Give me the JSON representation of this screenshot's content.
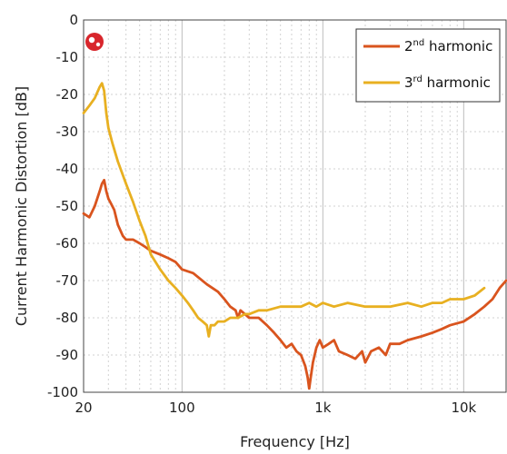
{
  "chart_data": {
    "type": "line",
    "xlabel": "Frequency [Hz]",
    "ylabel": "Current Harmonic Distortion [dB]",
    "x_scale": "log",
    "xlim": [
      20,
      20000
    ],
    "ylim": [
      -100,
      0
    ],
    "grid": true,
    "legend_position": "top-right",
    "x_ticks": [
      {
        "value": 20,
        "label": "20"
      },
      {
        "value": 100,
        "label": "100"
      },
      {
        "value": 1000,
        "label": "1k"
      },
      {
        "value": 10000,
        "label": "10k"
      }
    ],
    "y_ticks": [
      {
        "value": 0,
        "label": "0"
      },
      {
        "value": -10,
        "label": "-10"
      },
      {
        "value": -20,
        "label": "-20"
      },
      {
        "value": -30,
        "label": "-30"
      },
      {
        "value": -40,
        "label": "-40"
      },
      {
        "value": -50,
        "label": "-50"
      },
      {
        "value": -60,
        "label": "-60"
      },
      {
        "value": -70,
        "label": "-70"
      },
      {
        "value": -80,
        "label": "-80"
      },
      {
        "value": -90,
        "label": "-90"
      },
      {
        "value": -100,
        "label": "-100"
      }
    ],
    "series": [
      {
        "name": "2nd harmonic",
        "label_base": "2",
        "label_sup": "nd",
        "label_rest": " harmonic",
        "color": "#d9541e",
        "x": [
          20,
          22,
          24,
          26,
          27,
          28,
          29,
          30,
          31,
          33,
          35,
          38,
          40,
          45,
          50,
          55,
          60,
          70,
          80,
          90,
          100,
          120,
          150,
          180,
          200,
          220,
          240,
          250,
          260,
          300,
          350,
          400,
          450,
          500,
          550,
          600,
          650,
          700,
          750,
          780,
          800,
          820,
          850,
          900,
          950,
          1000,
          1100,
          1200,
          1300,
          1500,
          1700,
          1900,
          2000,
          2200,
          2500,
          2800,
          3000,
          3500,
          4000,
          5000,
          6000,
          7000,
          8000,
          10000,
          12000,
          14000,
          16000,
          18000,
          20000
        ],
        "y": [
          -52,
          -53,
          -50,
          -46,
          -44,
          -43,
          -46,
          -48,
          -49,
          -51,
          -55,
          -58,
          -59,
          -59,
          -60,
          -61,
          -62,
          -63,
          -64,
          -65,
          -67,
          -68,
          -71,
          -73,
          -75,
          -77,
          -78,
          -80,
          -78,
          -80,
          -80,
          -82,
          -84,
          -86,
          -88,
          -87,
          -89,
          -90,
          -93,
          -96,
          -99,
          -96,
          -92,
          -88,
          -86,
          -88,
          -87,
          -86,
          -89,
          -90,
          -91,
          -89,
          -92,
          -89,
          -88,
          -90,
          -87,
          -87,
          -86,
          -85,
          -84,
          -83,
          -82,
          -81,
          -79,
          -77,
          -75,
          -72,
          -70
        ]
      },
      {
        "name": "3rd harmonic",
        "label_base": "3",
        "label_sup": "rd",
        "label_rest": " harmonic",
        "color": "#e8b021",
        "x": [
          20,
          22,
          24,
          26,
          27,
          28,
          29,
          30,
          32,
          35,
          40,
          45,
          50,
          55,
          60,
          70,
          80,
          90,
          100,
          110,
          120,
          130,
          140,
          150,
          155,
          160,
          170,
          180,
          200,
          220,
          250,
          280,
          300,
          350,
          400,
          500,
          600,
          700,
          800,
          900,
          1000,
          1200,
          1500,
          2000,
          2500,
          3000,
          4000,
          5000,
          6000,
          7000,
          8000,
          10000,
          12000,
          14000
        ],
        "y": [
          -25,
          -23,
          -21,
          -18,
          -17,
          -19,
          -25,
          -29,
          -33,
          -38,
          -44,
          -49,
          -54,
          -58,
          -63,
          -67,
          -70,
          -72,
          -74,
          -76,
          -78,
          -80,
          -81,
          -82,
          -85,
          -82,
          -82,
          -81,
          -81,
          -80,
          -80,
          -79,
          -79,
          -78,
          -78,
          -77,
          -77,
          -77,
          -76,
          -77,
          -76,
          -77,
          -76,
          -77,
          -77,
          -77,
          -76,
          -77,
          -76,
          -76,
          -75,
          -75,
          -74,
          -72
        ]
      }
    ]
  },
  "icons": {
    "corner_logo": "brand-logo-icon"
  }
}
